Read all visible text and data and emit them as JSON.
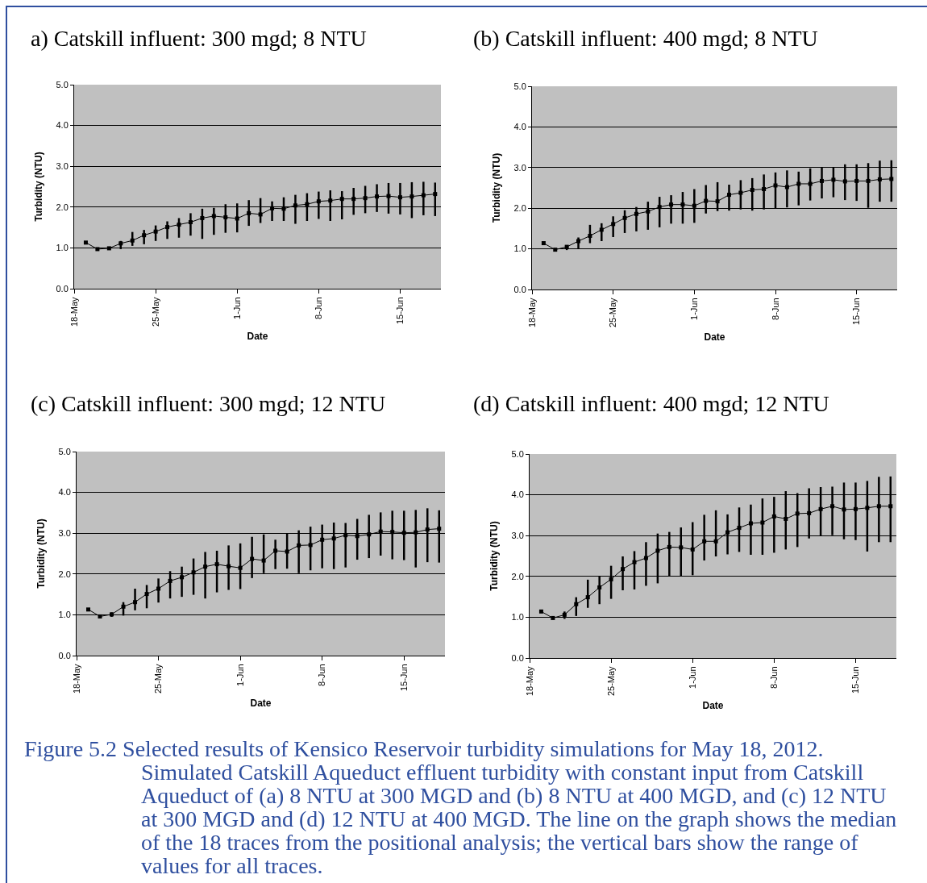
{
  "chart_data": [
    {
      "type": "line",
      "title": "a) Catskill influent: 300 mgd; 8 NTU",
      "xlabel": "Date",
      "ylabel": "Turbidity (NTU)",
      "x": [
        "2012-05-19",
        "2012-05-20",
        "2012-05-21",
        "2012-05-22",
        "2012-05-23",
        "2012-05-24",
        "2012-05-25",
        "2012-05-26",
        "2012-05-27",
        "2012-05-28",
        "2012-05-29",
        "2012-05-30",
        "2012-05-31",
        "2012-06-01",
        "2012-06-02",
        "2012-06-03",
        "2012-06-04",
        "2012-06-05",
        "2012-06-06",
        "2012-06-07",
        "2012-06-08",
        "2012-06-09",
        "2012-06-10",
        "2012-06-11",
        "2012-06-12",
        "2012-06-13",
        "2012-06-14",
        "2012-06-15",
        "2012-06-16",
        "2012-06-17",
        "2012-06-18"
      ],
      "series": [
        {
          "color": "#000000",
          "values": [
            1.13,
            0.97,
            0.99,
            1.11,
            1.18,
            1.31,
            1.4,
            1.51,
            1.57,
            1.63,
            1.73,
            1.78,
            1.75,
            1.72,
            1.85,
            1.82,
            1.97,
            1.96,
            2.04,
            2.07,
            2.14,
            2.16,
            2.2,
            2.2,
            2.22,
            2.26,
            2.27,
            2.24,
            2.26,
            2.29,
            2.32
          ],
          "errors": [
            null,
            null,
            null,
            [
              0.97,
              1.17
            ],
            [
              1.05,
              1.39
            ],
            [
              1.09,
              1.44
            ],
            [
              1.17,
              1.55
            ],
            [
              1.22,
              1.65
            ],
            [
              1.25,
              1.73
            ],
            [
              1.3,
              1.85
            ],
            [
              1.22,
              1.96
            ],
            [
              1.32,
              1.98
            ],
            [
              1.37,
              2.07
            ],
            [
              1.38,
              2.09
            ],
            [
              1.54,
              2.17
            ],
            [
              1.61,
              2.22
            ],
            [
              1.66,
              2.14
            ],
            [
              1.66,
              2.24
            ],
            [
              1.59,
              2.3
            ],
            [
              1.66,
              2.34
            ],
            [
              1.71,
              2.38
            ],
            [
              1.66,
              2.41
            ],
            [
              1.7,
              2.39
            ],
            [
              1.81,
              2.47
            ],
            [
              1.85,
              2.52
            ],
            [
              1.88,
              2.56
            ],
            [
              1.84,
              2.59
            ],
            [
              1.82,
              2.59
            ],
            [
              1.73,
              2.61
            ],
            [
              1.8,
              2.62
            ],
            [
              1.78,
              2.6
            ]
          ]
        }
      ],
      "xlim": [
        "2012-05-18",
        "2012-06-18T12:00"
      ],
      "xticks": [
        {
          "value": "2012-05-18",
          "label": "18-May"
        },
        {
          "value": "2012-05-25",
          "label": "25-May"
        },
        {
          "value": "2012-06-01",
          "label": "1-Jun"
        },
        {
          "value": "2012-06-08",
          "label": "8-Jun"
        },
        {
          "value": "2012-06-15",
          "label": "15-Jun"
        }
      ],
      "ylim": [
        0,
        5
      ],
      "yticks": [
        {
          "value": 0,
          "label": "0.0"
        },
        {
          "value": 1,
          "label": "1.0"
        },
        {
          "value": 2,
          "label": "2.0"
        },
        {
          "value": 3,
          "label": "3.0"
        },
        {
          "value": 4,
          "label": "4.0"
        },
        {
          "value": 5,
          "label": "5.0"
        }
      ],
      "grid": "y",
      "marker": "square",
      "line_style": "solid"
    },
    {
      "type": "line",
      "title": "(b) Catskill influent: 400 mgd; 8 NTU",
      "xlabel": "Date",
      "ylabel": "Turbidity (NTU)",
      "x": [
        "2012-05-19",
        "2012-05-20",
        "2012-05-21",
        "2012-05-22",
        "2012-05-23",
        "2012-05-24",
        "2012-05-25",
        "2012-05-26",
        "2012-05-27",
        "2012-05-28",
        "2012-05-29",
        "2012-05-30",
        "2012-05-31",
        "2012-06-01",
        "2012-06-02",
        "2012-06-03",
        "2012-06-04",
        "2012-06-05",
        "2012-06-06",
        "2012-06-07",
        "2012-06-08",
        "2012-06-09",
        "2012-06-10",
        "2012-06-11",
        "2012-06-12",
        "2012-06-13",
        "2012-06-14",
        "2012-06-15",
        "2012-06-16",
        "2012-06-17",
        "2012-06-18"
      ],
      "series": [
        {
          "color": "#000000",
          "values": [
            1.14,
            0.98,
            1.05,
            1.19,
            1.32,
            1.47,
            1.61,
            1.76,
            1.86,
            1.92,
            2.03,
            2.09,
            2.09,
            2.06,
            2.18,
            2.17,
            2.33,
            2.38,
            2.45,
            2.47,
            2.56,
            2.52,
            2.6,
            2.6,
            2.67,
            2.7,
            2.66,
            2.67,
            2.67,
            2.71,
            2.72
          ],
          "errors": [
            null,
            null,
            [
              0.97,
              1.08
            ],
            [
              1.0,
              1.28
            ],
            [
              1.14,
              1.59
            ],
            [
              1.19,
              1.63
            ],
            [
              1.29,
              1.8
            ],
            [
              1.39,
              1.95
            ],
            [
              1.43,
              2.03
            ],
            [
              1.47,
              2.16
            ],
            [
              1.53,
              2.28
            ],
            [
              1.62,
              2.32
            ],
            [
              1.62,
              2.4
            ],
            [
              1.64,
              2.47
            ],
            [
              1.87,
              2.57
            ],
            [
              1.93,
              2.64
            ],
            [
              1.94,
              2.58
            ],
            [
              1.97,
              2.69
            ],
            [
              1.94,
              2.74
            ],
            [
              1.97,
              2.83
            ],
            [
              1.99,
              2.88
            ],
            [
              2.02,
              2.93
            ],
            [
              2.07,
              2.9
            ],
            [
              2.19,
              2.98
            ],
            [
              2.24,
              3.01
            ],
            [
              2.27,
              3.01
            ],
            [
              2.2,
              3.08
            ],
            [
              2.18,
              3.08
            ],
            [
              2.01,
              3.11
            ],
            [
              2.16,
              3.17
            ],
            [
              2.16,
              3.18
            ]
          ]
        }
      ],
      "xlim": [
        "2012-05-18",
        "2012-06-18T12:00"
      ],
      "xticks": [
        {
          "value": "2012-05-18",
          "label": "18-May"
        },
        {
          "value": "2012-05-25",
          "label": "25-May"
        },
        {
          "value": "2012-06-01",
          "label": "1-Jun"
        },
        {
          "value": "2012-06-08",
          "label": "8-Jun"
        },
        {
          "value": "2012-06-15",
          "label": "15-Jun"
        }
      ],
      "ylim": [
        0,
        5
      ],
      "yticks": [
        {
          "value": 0,
          "label": "0.0"
        },
        {
          "value": 1,
          "label": "1.0"
        },
        {
          "value": 2,
          "label": "2.0"
        },
        {
          "value": 3,
          "label": "3.0"
        },
        {
          "value": 4,
          "label": "4.0"
        },
        {
          "value": 5,
          "label": "5.0"
        }
      ],
      "grid": "y",
      "marker": "square",
      "line_style": "solid"
    },
    {
      "type": "line",
      "title": "(c) Catskill influent: 300 mgd; 12 NTU",
      "xlabel": "Date",
      "ylabel": "Turbidity (NTU)",
      "x": [
        "2012-05-19",
        "2012-05-20",
        "2012-05-21",
        "2012-05-22",
        "2012-05-23",
        "2012-05-24",
        "2012-05-25",
        "2012-05-26",
        "2012-05-27",
        "2012-05-28",
        "2012-05-29",
        "2012-05-30",
        "2012-05-31",
        "2012-06-01",
        "2012-06-02",
        "2012-06-03",
        "2012-06-04",
        "2012-06-05",
        "2012-06-06",
        "2012-06-07",
        "2012-06-08",
        "2012-06-09",
        "2012-06-10",
        "2012-06-11",
        "2012-06-12",
        "2012-06-13",
        "2012-06-14",
        "2012-06-15",
        "2012-06-16",
        "2012-06-17",
        "2012-06-18"
      ],
      "series": [
        {
          "color": "#000000",
          "values": [
            1.13,
            0.96,
            1.01,
            1.2,
            1.31,
            1.51,
            1.64,
            1.83,
            1.92,
            2.04,
            2.18,
            2.24,
            2.19,
            2.15,
            2.37,
            2.33,
            2.57,
            2.55,
            2.7,
            2.71,
            2.84,
            2.87,
            2.95,
            2.93,
            2.97,
            3.04,
            3.03,
            3.01,
            3.02,
            3.09,
            3.11
          ],
          "errors": [
            null,
            null,
            [
              0.95,
              1.06
            ],
            [
              0.98,
              1.31
            ],
            [
              1.11,
              1.64
            ],
            [
              1.16,
              1.73
            ],
            [
              1.3,
              1.89
            ],
            [
              1.4,
              2.07
            ],
            [
              1.44,
              2.18
            ],
            [
              1.49,
              2.38
            ],
            [
              1.4,
              2.54
            ],
            [
              1.55,
              2.57
            ],
            [
              1.61,
              2.7
            ],
            [
              1.63,
              2.75
            ],
            [
              1.9,
              2.91
            ],
            [
              2.02,
              2.97
            ],
            [
              2.12,
              2.84
            ],
            [
              2.13,
              2.99
            ],
            [
              2.02,
              3.07
            ],
            [
              2.09,
              3.16
            ],
            [
              2.14,
              3.21
            ],
            [
              2.12,
              3.26
            ],
            [
              2.16,
              3.25
            ],
            [
              2.35,
              3.35
            ],
            [
              2.39,
              3.45
            ],
            [
              2.45,
              3.51
            ],
            [
              2.36,
              3.55
            ],
            [
              2.34,
              3.55
            ],
            [
              2.16,
              3.57
            ],
            [
              2.29,
              3.61
            ],
            [
              2.28,
              3.56
            ]
          ]
        }
      ],
      "xlim": [
        "2012-05-18",
        "2012-06-18T12:00"
      ],
      "xticks": [
        {
          "value": "2012-05-18",
          "label": "18-May"
        },
        {
          "value": "2012-05-25",
          "label": "25-May"
        },
        {
          "value": "2012-06-01",
          "label": "1-Jun"
        },
        {
          "value": "2012-06-08",
          "label": "8-Jun"
        },
        {
          "value": "2012-06-15",
          "label": "15-Jun"
        }
      ],
      "ylim": [
        0,
        5
      ],
      "yticks": [
        {
          "value": 0,
          "label": "0.0"
        },
        {
          "value": 1,
          "label": "1.0"
        },
        {
          "value": 2,
          "label": "2.0"
        },
        {
          "value": 3,
          "label": "3.0"
        },
        {
          "value": 4,
          "label": "4.0"
        },
        {
          "value": 5,
          "label": "5.0"
        }
      ],
      "grid": "y",
      "marker": "square",
      "line_style": "solid"
    },
    {
      "type": "line",
      "title": "(d) Catskill influent: 400 mgd; 12 NTU",
      "xlabel": "Date",
      "ylabel": "Turbidity (NTU)",
      "annotations": [
        "Figure 5.2  Selected results of Kensico Reservoir turbidity simulations for May 18, 2012. Simulated Catskill Aqueduct effluent turbidity with constant input from Catskill Aqueduct of (a) 8 NTU at 300 MGD and (b) 8 NTU at 400 MGD, and (c) 12 NTU at 300 MGD and (d) 12 NTU at 400 MGD. The line on the graph shows the median of the 18 traces from the positional analysis; the vertical bars show the range of values for all traces."
      ],
      "x": [
        "2012-05-19",
        "2012-05-20",
        "2012-05-21",
        "2012-05-22",
        "2012-05-23",
        "2012-05-24",
        "2012-05-25",
        "2012-05-26",
        "2012-05-27",
        "2012-05-28",
        "2012-05-29",
        "2012-05-30",
        "2012-05-31",
        "2012-06-01",
        "2012-06-02",
        "2012-06-03",
        "2012-06-04",
        "2012-06-05",
        "2012-06-06",
        "2012-06-07",
        "2012-06-08",
        "2012-06-09",
        "2012-06-10",
        "2012-06-11",
        "2012-06-12",
        "2012-06-13",
        "2012-06-14",
        "2012-06-15",
        "2012-06-16",
        "2012-06-17",
        "2012-06-18"
      ],
      "series": [
        {
          "color": "#000000",
          "values": [
            1.14,
            0.98,
            1.06,
            1.32,
            1.49,
            1.73,
            1.93,
            2.18,
            2.35,
            2.45,
            2.63,
            2.72,
            2.71,
            2.66,
            2.86,
            2.86,
            3.08,
            3.19,
            3.3,
            3.32,
            3.47,
            3.41,
            3.54,
            3.55,
            3.65,
            3.72,
            3.64,
            3.65,
            3.68,
            3.72,
            3.72
          ],
          "errors": [
            null,
            null,
            [
              0.96,
              1.14
            ],
            [
              1.03,
              1.49
            ],
            [
              1.23,
              1.92
            ],
            [
              1.32,
              2.0
            ],
            [
              1.45,
              2.26
            ],
            [
              1.66,
              2.49
            ],
            [
              1.68,
              2.62
            ],
            [
              1.77,
              2.84
            ],
            [
              1.83,
              3.05
            ],
            [
              2.01,
              3.09
            ],
            [
              2.01,
              3.2
            ],
            [
              2.03,
              3.33
            ],
            [
              2.39,
              3.51
            ],
            [
              2.49,
              3.62
            ],
            [
              2.54,
              3.52
            ],
            [
              2.6,
              3.69
            ],
            [
              2.53,
              3.76
            ],
            [
              2.53,
              3.91
            ],
            [
              2.58,
              3.95
            ],
            [
              2.66,
              4.09
            ],
            [
              2.72,
              4.04
            ],
            [
              2.93,
              4.16
            ],
            [
              2.99,
              4.19
            ],
            [
              3.01,
              4.2
            ],
            [
              2.91,
              4.3
            ],
            [
              2.89,
              4.3
            ],
            [
              2.61,
              4.34
            ],
            [
              2.84,
              4.44
            ],
            [
              2.84,
              4.45
            ]
          ]
        }
      ],
      "xlim": [
        "2012-05-18",
        "2012-06-18T12:00"
      ],
      "xticks": [
        {
          "value": "2012-05-18",
          "label": "18-May"
        },
        {
          "value": "2012-05-25",
          "label": "25-May"
        },
        {
          "value": "2012-06-01",
          "label": "1-Jun"
        },
        {
          "value": "2012-06-08",
          "label": "8-Jun"
        },
        {
          "value": "2012-06-15",
          "label": "15-Jun"
        }
      ],
      "ylim": [
        0,
        5
      ],
      "yticks": [
        {
          "value": 0,
          "label": "0.0"
        },
        {
          "value": 1,
          "label": "1.0"
        },
        {
          "value": 2,
          "label": "2.0"
        },
        {
          "value": 3,
          "label": "3.0"
        },
        {
          "value": 4,
          "label": "4.0"
        },
        {
          "value": 5,
          "label": "5.0"
        }
      ],
      "grid": "y",
      "marker": "square",
      "line_style": "solid"
    }
  ]
}
